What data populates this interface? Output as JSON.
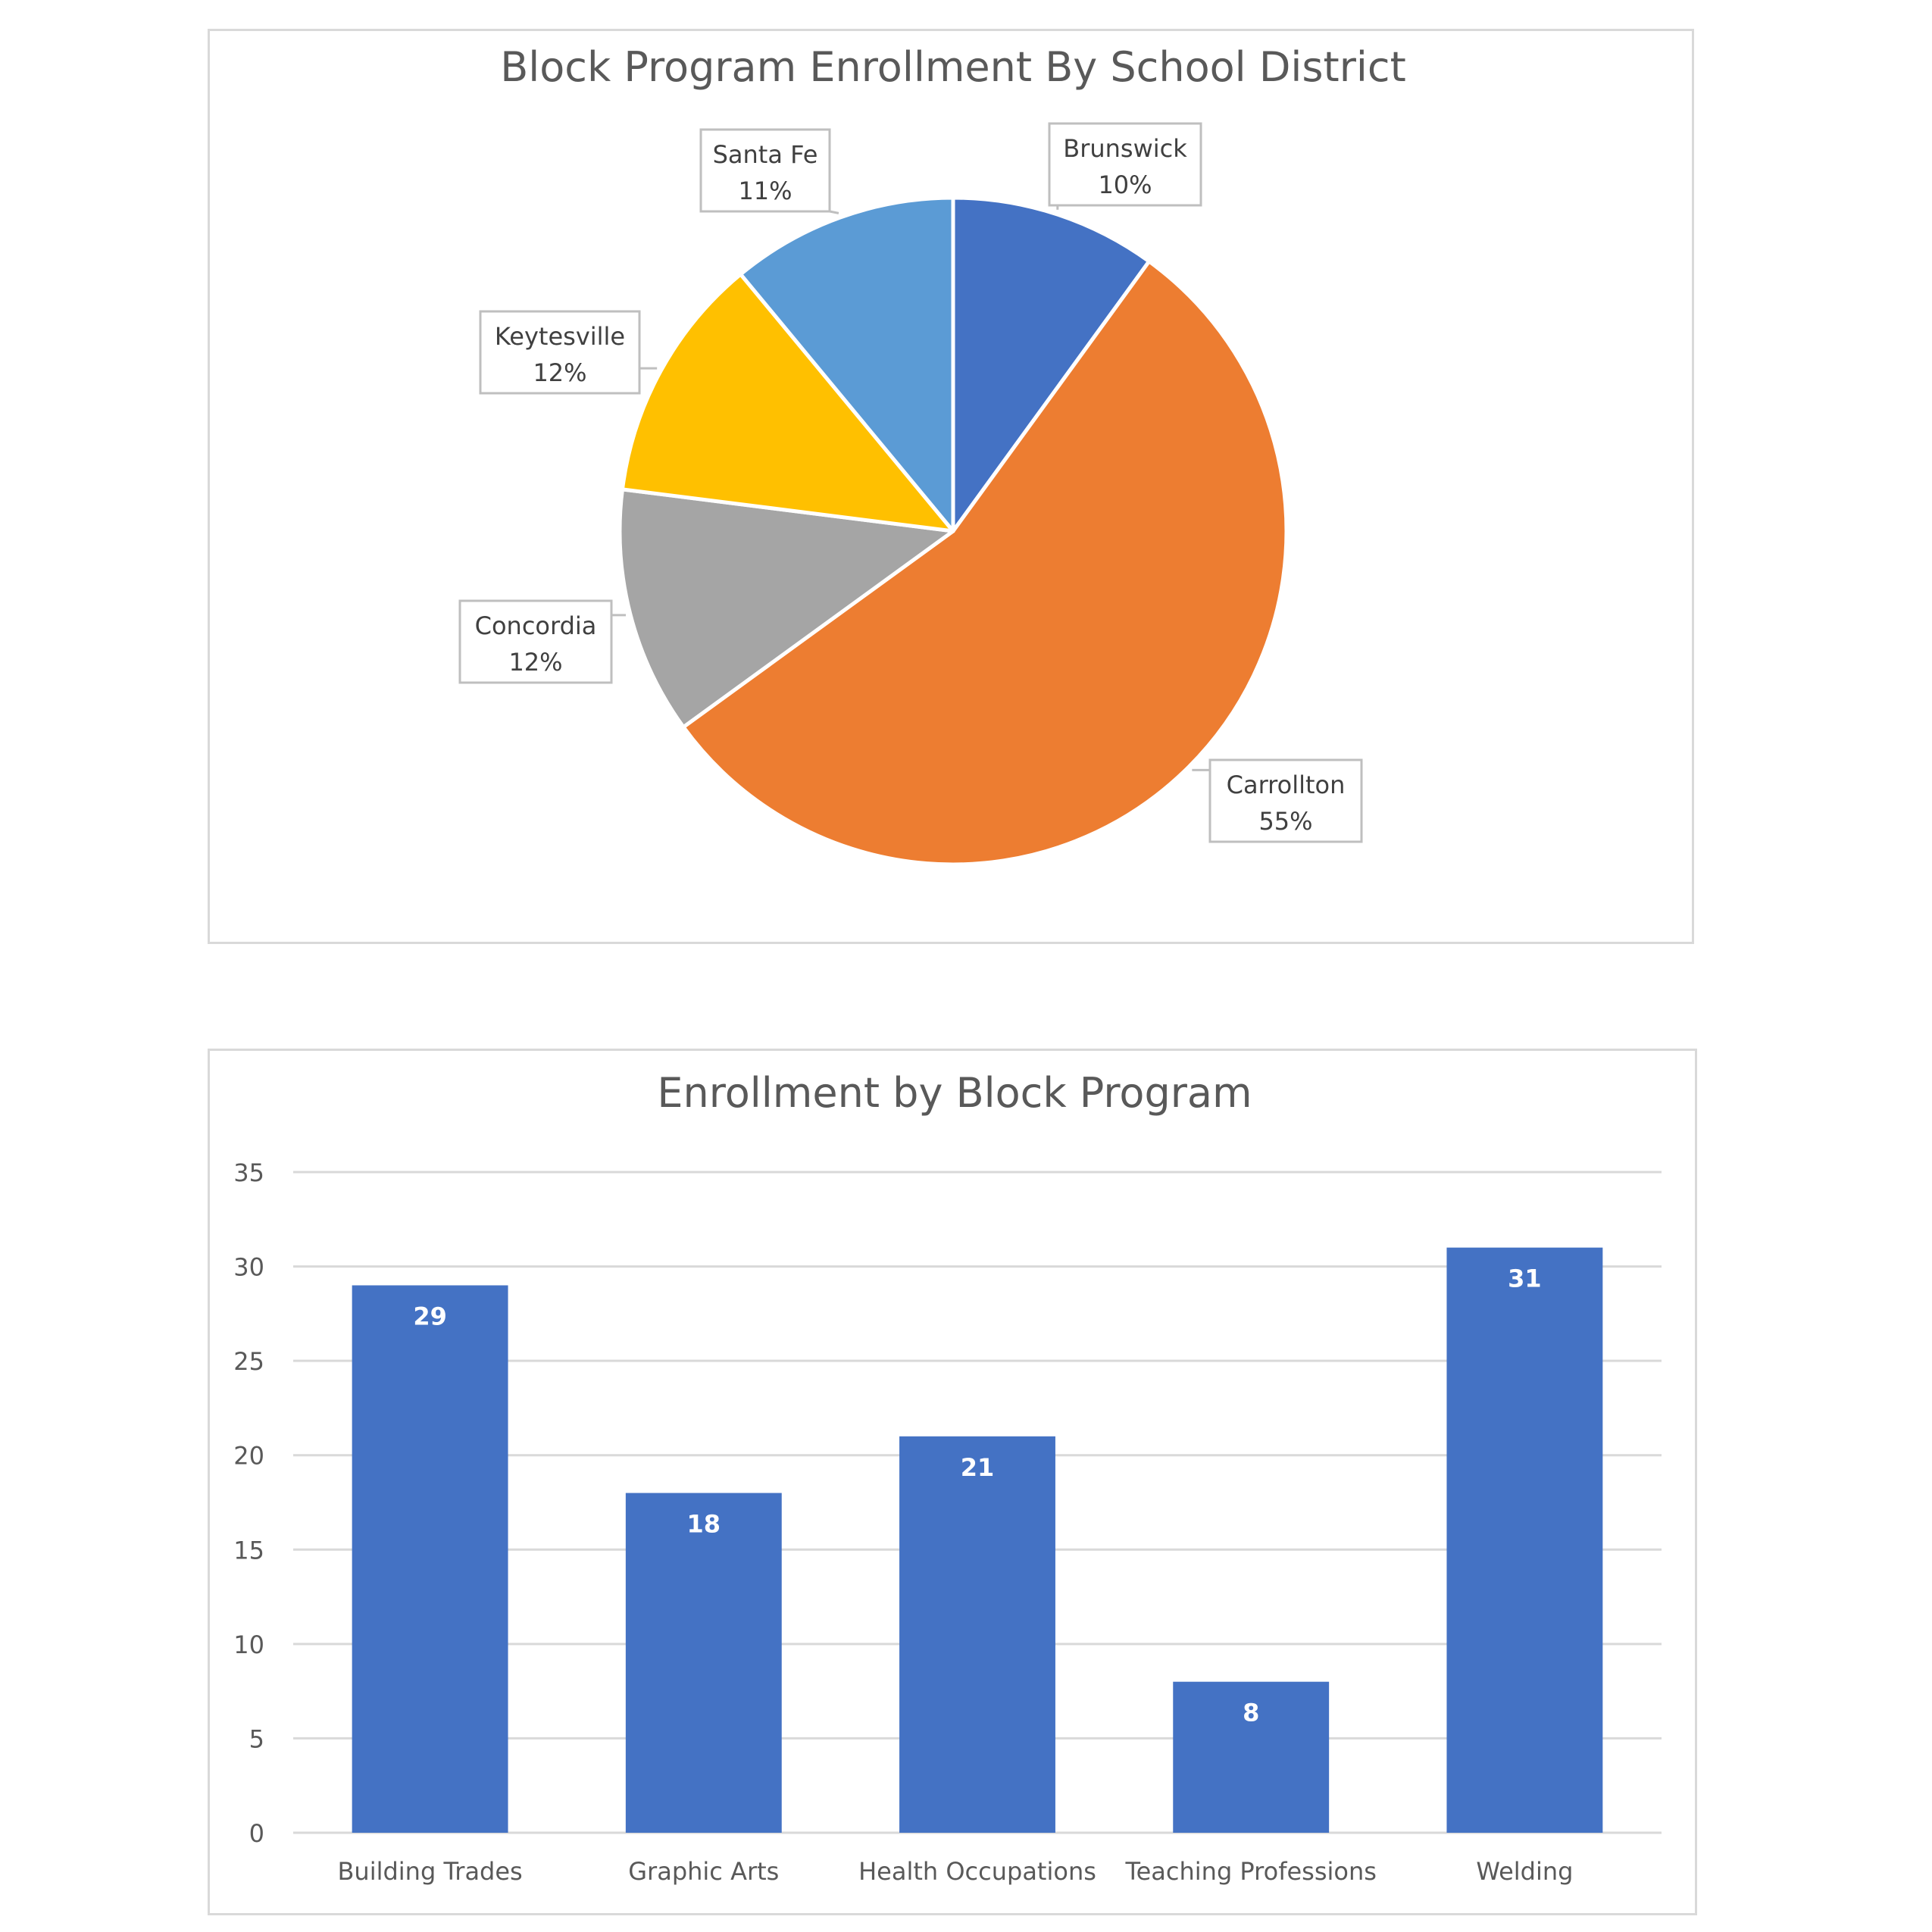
{
  "chart_data": [
    {
      "type": "pie",
      "title": "Block Program Enrollment By School District",
      "slices": [
        {
          "label": "Brunswick",
          "value": 10,
          "display": "10%",
          "color": "#4472C4"
        },
        {
          "label": "Carrollton",
          "value": 55,
          "display": "55%",
          "color": "#ED7D31"
        },
        {
          "label": "Concordia",
          "value": 12,
          "display": "12%",
          "color": "#A5A5A5"
        },
        {
          "label": "Keytesville",
          "value": 12,
          "display": "12%",
          "color": "#FFC000"
        },
        {
          "label": "Santa Fe",
          "value": 11,
          "display": "11%",
          "color": "#5B9BD5"
        }
      ],
      "legend": "none",
      "label_style": "callouts"
    },
    {
      "type": "bar",
      "title": "Enrollment by Block Program",
      "categories": [
        "Building Trades",
        "Graphic Arts",
        "Health Occupations",
        "Teaching Professions",
        "Welding"
      ],
      "values": [
        29,
        18,
        21,
        8,
        31
      ],
      "value_labels": [
        "29",
        "18",
        "21",
        "8",
        "31"
      ],
      "xlabel": "",
      "ylabel": "",
      "ylim": [
        0,
        35
      ],
      "yticks": [
        "0",
        "5",
        "10",
        "15",
        "20",
        "25",
        "30",
        "35"
      ],
      "grid": "horizontal",
      "legend": "none",
      "bar_color": "#4472C4"
    }
  ]
}
